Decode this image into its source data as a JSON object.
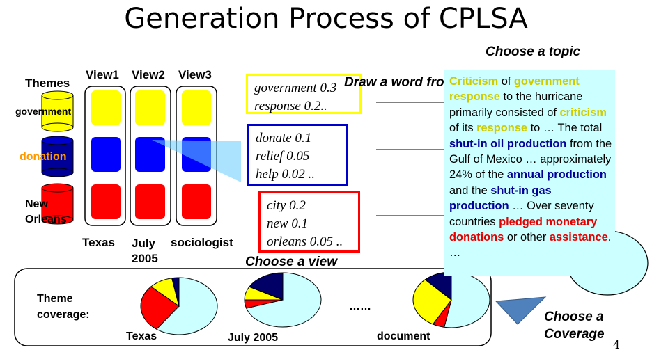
{
  "title": "Generation Process of CPLSA",
  "choose_topic": "Choose a topic",
  "draw_word": "Draw a word from",
  "choose_view": "Choose a view",
  "choose_coverage": "Choose a Coverage",
  "themes_header": "Themes",
  "themes": [
    {
      "label": "government",
      "color": "#ffff00",
      "label_color": "#000000"
    },
    {
      "label": "donation",
      "color": "#000099",
      "label_color": "#ff9900"
    },
    {
      "label": "New Orleans",
      "color": "#ff0000",
      "label_color": "#000000"
    }
  ],
  "views": [
    {
      "header": "View1",
      "footer": "Texas"
    },
    {
      "header": "View2",
      "footer": "July 2005"
    },
    {
      "header": "View3",
      "footer": "sociologist"
    }
  ],
  "word_distributions": [
    {
      "border": "#ffff00",
      "words": [
        "government 0.3",
        "response  0.2.."
      ]
    },
    {
      "border": "#0000cc",
      "words": [
        "donate  0.1",
        "relief 0.05",
        "help 0.02 .."
      ]
    },
    {
      "border": "#ff0000",
      "words": [
        "city 0.2",
        "new    0.1",
        "orleans 0.05 .."
      ]
    }
  ],
  "document_text": [
    {
      "t": "Criticism",
      "c": "y"
    },
    {
      "t": " of ",
      "c": ""
    },
    {
      "t": "government response",
      "c": "y"
    },
    {
      "t": " to the hurricane primarily consisted of ",
      "c": ""
    },
    {
      "t": "criticism",
      "c": "y"
    },
    {
      "t": " of its ",
      "c": ""
    },
    {
      "t": "response",
      "c": "y"
    },
    {
      "t": " to … The total ",
      "c": ""
    },
    {
      "t": "shut-in oil production",
      "c": "b"
    },
    {
      "t": " from the Gulf of Mexico … approximately 24% of the ",
      "c": ""
    },
    {
      "t": "annual production",
      "c": "b"
    },
    {
      "t": " and the ",
      "c": ""
    },
    {
      "t": "shut-in gas production",
      "c": "b"
    },
    {
      "t": " … Over seventy countries ",
      "c": ""
    },
    {
      "t": "pledged monetary donations",
      "c": "r"
    },
    {
      "t": " or other ",
      "c": ""
    },
    {
      "t": "assistance",
      "c": "r"
    },
    {
      "t": ". …",
      "c": ""
    }
  ],
  "theme_coverage_label": "Theme coverage:",
  "coverage_dots": "……",
  "coverages": [
    {
      "label": "Texas",
      "slices": [
        {
          "theme": "government",
          "value": 0.1,
          "color": "#ffff00"
        },
        {
          "theme": "donation",
          "value": 0.03,
          "color": "#000066"
        },
        {
          "theme": "New Orleans",
          "value": 0.27,
          "color": "#ff0000"
        },
        {
          "theme": "background",
          "value": 0.6,
          "color": "#ccffff"
        }
      ]
    },
    {
      "label": "July 2005",
      "slices": [
        {
          "theme": "government",
          "value": 0.08,
          "color": "#ffff00"
        },
        {
          "theme": "donation",
          "value": 0.17,
          "color": "#000066"
        },
        {
          "theme": "New Orleans",
          "value": 0.05,
          "color": "#ff0000"
        },
        {
          "theme": "background",
          "value": 0.7,
          "color": "#ccffff"
        }
      ]
    },
    {
      "label": "document",
      "slices": [
        {
          "theme": "government",
          "value": 0.3,
          "color": "#ffff00"
        },
        {
          "theme": "donation",
          "value": 0.12,
          "color": "#000066"
        },
        {
          "theme": "New Orleans",
          "value": 0.05,
          "color": "#ff0000"
        },
        {
          "theme": "background",
          "value": 0.53,
          "color": "#ccffff"
        }
      ]
    }
  ],
  "page_number": "4"
}
